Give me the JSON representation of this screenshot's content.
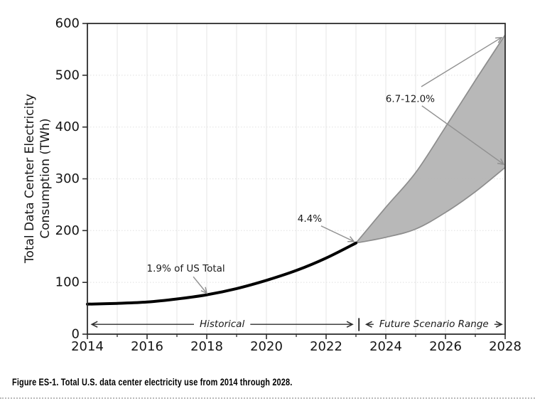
{
  "figure": {
    "caption": "Figure ES-1. Total U.S. data center electricity use from 2014 through 2028."
  },
  "chart_data": {
    "type": "line",
    "title": "",
    "xlabel": "",
    "ylabel_line1": "Total Data Center Electricity",
    "ylabel_line2": "Consumption (TWh)",
    "xlim": [
      2014,
      2028
    ],
    "ylim": [
      0,
      600
    ],
    "x_major_ticks": [
      2014,
      2016,
      2018,
      2020,
      2022,
      2024,
      2026,
      2028
    ],
    "x_minor_ticks": [
      2015,
      2017,
      2019,
      2021,
      2023,
      2025,
      2027
    ],
    "y_ticks": [
      0,
      100,
      200,
      300,
      400,
      500,
      600
    ],
    "grid": true,
    "legend": "none",
    "series": [
      {
        "name": "historical",
        "color": "#000000",
        "width": 4,
        "x": [
          2014,
          2015,
          2016,
          2017,
          2018,
          2019,
          2020,
          2021,
          2022,
          2023
        ],
        "y": [
          58,
          59.5,
          62,
          68,
          76,
          88,
          104,
          123,
          147,
          176
        ]
      }
    ],
    "band": {
      "name": "future-scenario-range",
      "fill": "#b4b4b4",
      "edge": "#8d8d8d",
      "x": [
        2023,
        2024,
        2025,
        2026,
        2027,
        2028
      ],
      "upper": [
        176,
        245,
        312,
        400,
        490,
        578
      ],
      "lower": [
        176,
        187,
        203,
        235,
        275,
        322
      ]
    },
    "annotations": [
      {
        "id": "share-2018",
        "label": "1.9% of US Total",
        "text_at": [
          2017.3,
          128
        ],
        "arrows": [
          {
            "from": [
              2017.55,
              111
            ],
            "to": [
              2018.0,
              79
            ]
          }
        ]
      },
      {
        "id": "share-2023",
        "label": "4.4%",
        "text_at": [
          2021.45,
          224
        ],
        "arrows": [
          {
            "from": [
              2021.83,
              209
            ],
            "to": [
              2022.93,
              179
            ]
          }
        ]
      },
      {
        "id": "share-2028",
        "label": "6.7-12.0%",
        "text_at": [
          2024.82,
          455
        ],
        "arrows": [
          {
            "from": [
              2025.19,
              478
            ],
            "to": [
              2027.88,
              573
            ]
          },
          {
            "from": [
              2025.21,
              441
            ],
            "to": [
              2027.95,
              328
            ]
          }
        ]
      }
    ],
    "range_markers": [
      {
        "label": "Historical",
        "x_start": 2014.1,
        "x_end": 2022.93,
        "y": 19
      },
      {
        "label": "Future Scenario Range",
        "x_start": 2023.3,
        "x_end": 2027.93,
        "y": 19
      }
    ],
    "range_divider": {
      "x": 2023.1,
      "y_bottom": 6,
      "y_top": 31
    },
    "style": {
      "axis_color": "#2e2e2e",
      "grid_v_color": "#ececec",
      "grid_h_color": "#e4e4e4",
      "arrow_color": "#909090",
      "text_color": "#1a1a1a",
      "background": "#ffffff"
    }
  }
}
